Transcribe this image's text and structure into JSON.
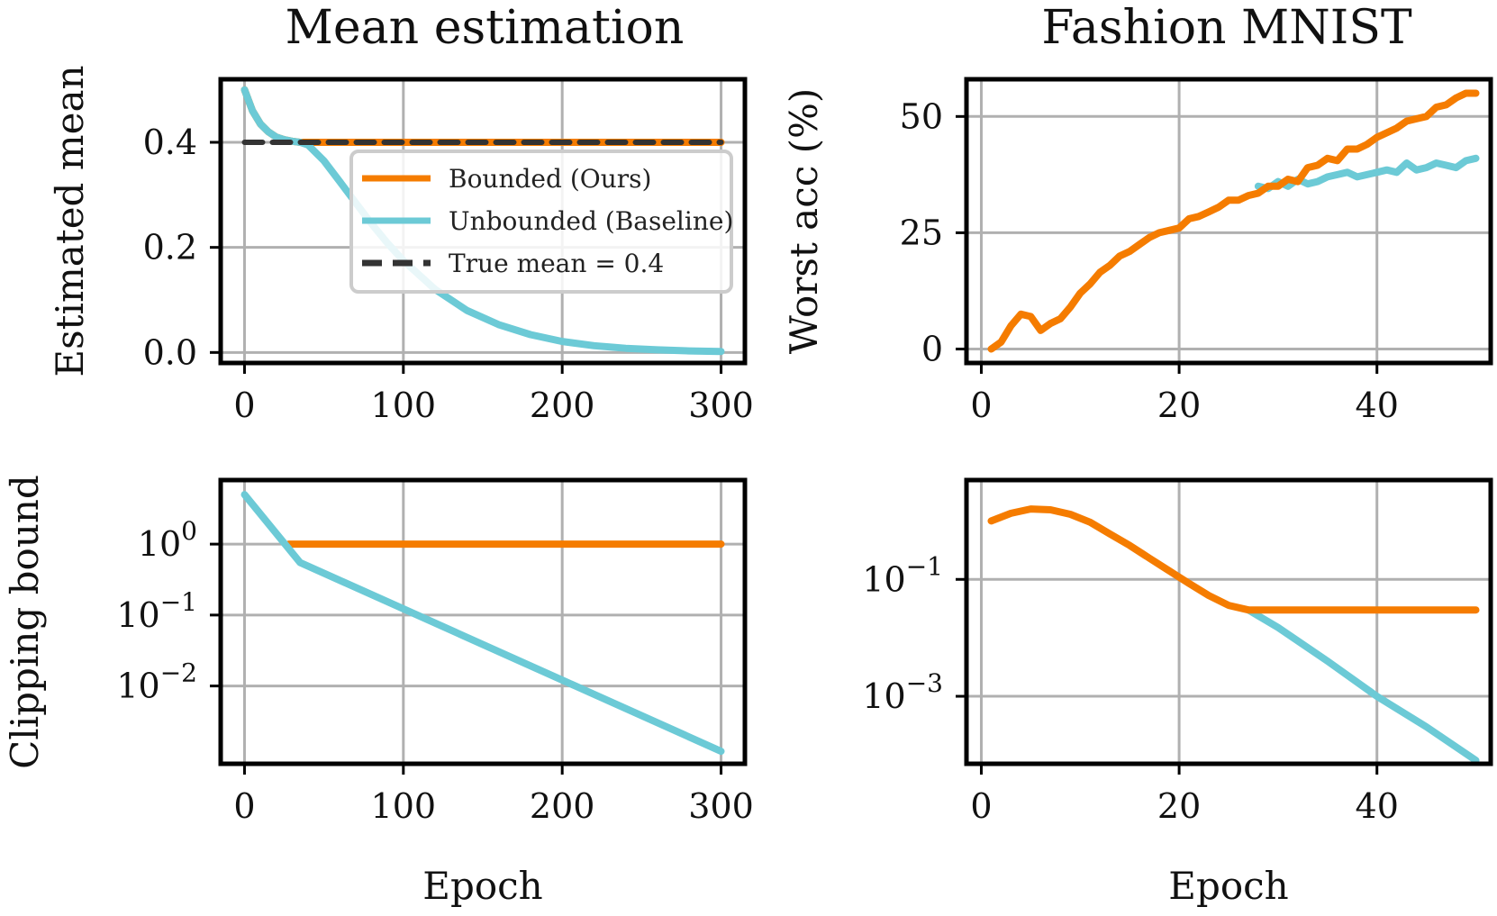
{
  "colors": {
    "bounded": "#f57c00",
    "unbounded": "#6ccad6",
    "true_mean": "#333333"
  },
  "chart_data": [
    {
      "id": "mean-estimate",
      "type": "line",
      "title": "Mean estimation",
      "xlabel": "",
      "ylabel": "Estimated mean",
      "xlim": [
        -15,
        315
      ],
      "ylim": [
        -0.02,
        0.52
      ],
      "yscale": "linear",
      "grid": true,
      "legend": "center-right",
      "xticks": [
        0,
        100,
        200,
        300
      ],
      "xtick_labels": [
        "0",
        "100",
        "200",
        "300"
      ],
      "yticks": [
        0.0,
        0.2,
        0.4
      ],
      "ytick_labels": [
        "0.0",
        "0.2",
        "0.4"
      ],
      "series": [
        {
          "name": "Bounded (Ours)",
          "color": "#f57c00",
          "dash": false,
          "x": [
            0,
            5,
            10,
            15,
            20,
            25,
            30,
            35,
            40,
            100,
            200,
            300
          ],
          "y": [
            0.5,
            0.46,
            0.435,
            0.42,
            0.41,
            0.405,
            0.402,
            0.4,
            0.4,
            0.4,
            0.4,
            0.4
          ]
        },
        {
          "name": "Unbounded (Baseline)",
          "color": "#6ccad6",
          "dash": false,
          "x": [
            0,
            5,
            10,
            15,
            20,
            25,
            30,
            35,
            40,
            50,
            60,
            70,
            80,
            90,
            100,
            120,
            140,
            160,
            180,
            200,
            220,
            240,
            260,
            280,
            300
          ],
          "y": [
            0.5,
            0.46,
            0.435,
            0.42,
            0.41,
            0.405,
            0.402,
            0.4,
            0.395,
            0.365,
            0.325,
            0.285,
            0.245,
            0.208,
            0.175,
            0.12,
            0.08,
            0.053,
            0.034,
            0.021,
            0.013,
            0.008,
            0.005,
            0.003,
            0.002
          ]
        },
        {
          "name": "True mean = 0.4",
          "color": "#333333",
          "dash": true,
          "x": [
            0,
            300
          ],
          "y": [
            0.4,
            0.4
          ]
        }
      ]
    },
    {
      "id": "fmnist-acc",
      "type": "line",
      "title": "Fashion MNIST",
      "xlabel": "",
      "ylabel": "Worst acc (%)",
      "xlim": [
        -1.5,
        51.5
      ],
      "ylim": [
        -3,
        58
      ],
      "yscale": "linear",
      "grid": true,
      "xticks": [
        0,
        20,
        40
      ],
      "xtick_labels": [
        "0",
        "20",
        "40"
      ],
      "yticks": [
        0,
        25,
        50
      ],
      "ytick_labels": [
        "0",
        "25",
        "50"
      ],
      "series": [
        {
          "name": "Unbounded (Baseline)",
          "color": "#6ccad6",
          "dash": false,
          "x": [
            28,
            29,
            30,
            31,
            32,
            33,
            34,
            35,
            36,
            37,
            38,
            39,
            40,
            41,
            42,
            43,
            44,
            45,
            46,
            47,
            48,
            49,
            50
          ],
          "y": [
            35,
            34.5,
            36,
            35,
            36.5,
            35.5,
            36,
            37,
            37.5,
            38,
            37,
            37.5,
            38,
            38.5,
            38,
            40,
            38.5,
            39,
            40,
            39.5,
            39,
            40.5,
            41
          ]
        },
        {
          "name": "Bounded (Ours)",
          "color": "#f57c00",
          "dash": false,
          "x": [
            1,
            2,
            3,
            4,
            5,
            6,
            7,
            8,
            9,
            10,
            11,
            12,
            13,
            14,
            15,
            16,
            17,
            18,
            19,
            20,
            21,
            22,
            23,
            24,
            25,
            26,
            27,
            28,
            29,
            30,
            31,
            32,
            33,
            34,
            35,
            36,
            37,
            38,
            39,
            40,
            41,
            42,
            43,
            44,
            45,
            46,
            47,
            48,
            49,
            50
          ],
          "y": [
            0,
            1.5,
            5,
            7.5,
            7,
            4,
            5.5,
            6.5,
            9,
            12,
            14,
            16.5,
            18,
            20,
            21,
            22.5,
            24,
            25,
            25.5,
            26,
            28,
            28.5,
            29.5,
            30.5,
            32,
            32,
            33,
            33.5,
            35,
            35,
            36.5,
            36,
            39,
            39.5,
            41,
            40.5,
            43,
            43,
            44,
            45.5,
            46.5,
            47.5,
            49,
            49.5,
            50,
            52,
            52.5,
            54,
            55,
            55
          ]
        }
      ]
    },
    {
      "id": "mean-clip",
      "type": "line",
      "title": "",
      "xlabel": "Epoch",
      "ylabel": "Clipping bound",
      "xlim": [
        -15,
        315
      ],
      "ylim": [
        0.0008,
        8
      ],
      "yscale": "log",
      "grid": true,
      "xticks": [
        0,
        100,
        200,
        300
      ],
      "xtick_labels": [
        "0",
        "100",
        "200",
        "300"
      ],
      "yticks": [
        1,
        0.1,
        0.01
      ],
      "ytick_labels": [
        [
          "10",
          "0"
        ],
        [
          "10",
          "−1"
        ],
        [
          "10",
          "−2"
        ]
      ],
      "series": [
        {
          "name": "Bounded (Ours)",
          "color": "#f57c00",
          "dash": false,
          "x": [
            28,
            300
          ],
          "y": [
            1,
            1
          ]
        },
        {
          "name": "Unbounded (Baseline)",
          "color": "#6ccad6",
          "dash": false,
          "x": [
            0,
            35,
            300
          ],
          "y": [
            5,
            0.55,
            0.0012
          ]
        }
      ]
    },
    {
      "id": "fmnist-clip",
      "type": "line",
      "title": "",
      "xlabel": "Epoch",
      "ylabel": "",
      "xlim": [
        -1.5,
        51.5
      ],
      "ylim": [
        7e-05,
        5
      ],
      "yscale": "log",
      "grid": true,
      "xticks": [
        0,
        20,
        40
      ],
      "xtick_labels": [
        "0",
        "20",
        "40"
      ],
      "yticks": [
        0.1,
        0.001
      ],
      "ytick_labels": [
        [
          "10",
          "−1"
        ],
        [
          "10",
          "−3"
        ]
      ],
      "series": [
        {
          "name": "Unbounded (Baseline)",
          "color": "#6ccad6",
          "dash": false,
          "x": [
            27,
            30,
            35,
            40,
            45,
            50
          ],
          "y": [
            0.03,
            0.015,
            0.004,
            0.001,
            0.0003,
            8e-05
          ]
        },
        {
          "name": "Bounded (Ours)",
          "color": "#f57c00",
          "dash": false,
          "x": [
            1,
            3,
            5,
            7,
            9,
            11,
            13,
            15,
            17,
            19,
            21,
            23,
            25,
            27,
            29,
            31,
            35,
            40,
            45,
            50
          ],
          "y": [
            1,
            1.35,
            1.6,
            1.55,
            1.3,
            0.95,
            0.6,
            0.38,
            0.23,
            0.14,
            0.085,
            0.053,
            0.036,
            0.03,
            0.03,
            0.03,
            0.03,
            0.03,
            0.03,
            0.03
          ]
        }
      ]
    }
  ]
}
